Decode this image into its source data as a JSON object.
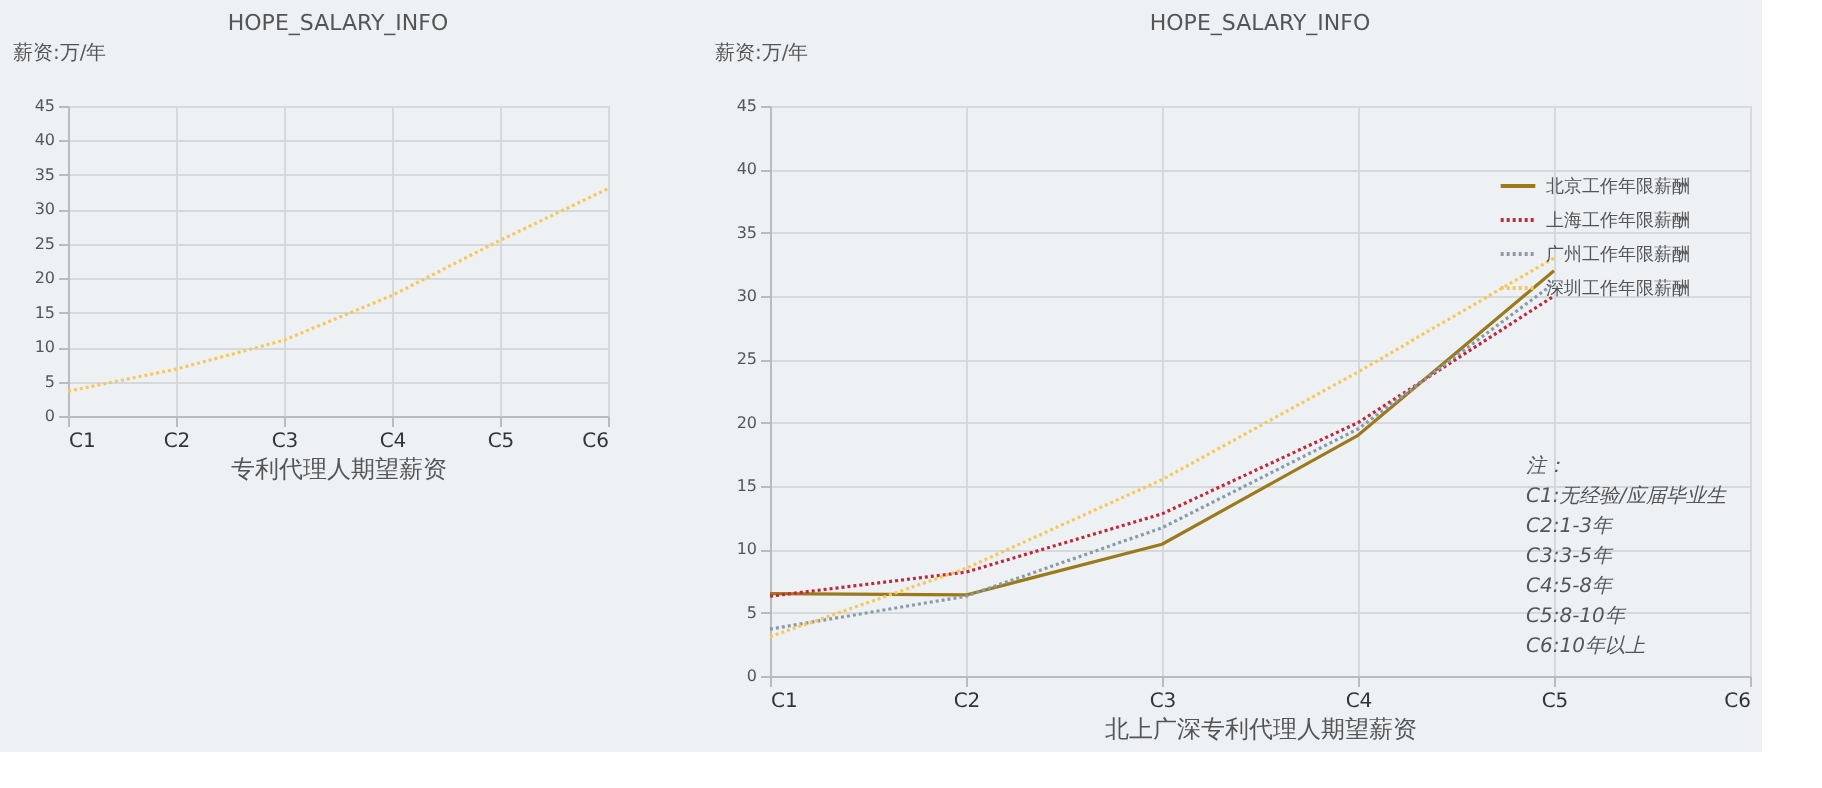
{
  "chart_data": [
    {
      "type": "line",
      "title": "HOPE_SALARY_INFO",
      "xlabel": "专利代理人期望薪资",
      "ylabel": "薪资:万/年",
      "categories": [
        "C1",
        "C2",
        "C3",
        "C4",
        "C5",
        "C6"
      ],
      "ylim": [
        0,
        45
      ],
      "yticks": [
        0,
        5,
        10,
        15,
        20,
        25,
        30,
        35,
        40,
        45
      ],
      "grid": true,
      "legend": false,
      "marker": "none",
      "series": [
        {
          "color": "#f5c85c",
          "line_style": "dotted",
          "values": [
            3.6,
            6.8,
            11,
            17.5,
            25.5,
            33
          ]
        }
      ]
    },
    {
      "type": "line",
      "title": "HOPE_SALARY_INFO",
      "xlabel": "北上广深专利代理人期望薪资",
      "ylabel": "薪资:万/年",
      "categories": [
        "C1",
        "C2",
        "C3",
        "C4",
        "C5",
        "C6"
      ],
      "ylim": [
        0,
        45
      ],
      "yticks": [
        0,
        5,
        10,
        15,
        20,
        25,
        30,
        35,
        40,
        45
      ],
      "grid": true,
      "legend": "top right",
      "marker": "none",
      "series": [
        {
          "name": "北京工作年限薪酬",
          "color": "#9c7a1c",
          "line_style": "solid",
          "values": [
            6.5,
            6.4,
            10.4,
            19,
            32,
            null
          ]
        },
        {
          "name": "上海工作年限薪酬",
          "color": "#c0283a",
          "line_style": "dotted",
          "values": [
            6.3,
            8.2,
            12.8,
            20,
            30,
            null
          ]
        },
        {
          "name": "广州工作年限薪酬",
          "color": "#8a9aa8",
          "line_style": "dotted",
          "values": [
            3.7,
            6.3,
            11.7,
            19.5,
            31,
            null
          ]
        },
        {
          "name": "深圳工作年限薪酬",
          "color": "#f5c85c",
          "line_style": "dotted",
          "values": [
            3.1,
            8.5,
            15.5,
            24,
            33,
            null
          ]
        }
      ],
      "annotations": [
        "注：",
        "C1:无经验/应届毕业生",
        "C2:1-3年",
        "C3:3-5年",
        "C4:5-8年",
        "C5:8-10年",
        "C6:10年以上"
      ]
    }
  ]
}
